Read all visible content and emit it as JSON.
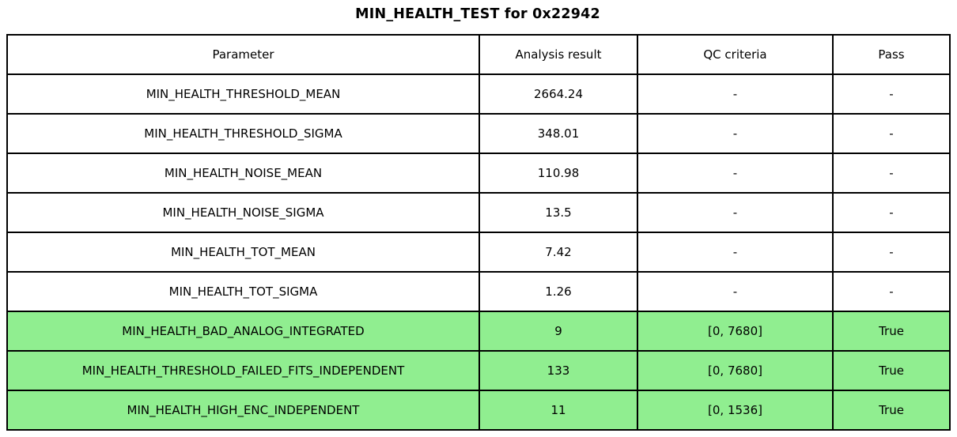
{
  "title": "MIN_HEALTH_TEST for 0x22942",
  "table": {
    "columns": [
      "Parameter",
      "Analysis result",
      "QC criteria",
      "Pass"
    ],
    "rows": [
      {
        "cells": [
          "MIN_HEALTH_THRESHOLD_MEAN",
          "2664.24",
          "-",
          "-"
        ],
        "highlight": false
      },
      {
        "cells": [
          "MIN_HEALTH_THRESHOLD_SIGMA",
          "348.01",
          "-",
          "-"
        ],
        "highlight": false
      },
      {
        "cells": [
          "MIN_HEALTH_NOISE_MEAN",
          "110.98",
          "-",
          "-"
        ],
        "highlight": false
      },
      {
        "cells": [
          "MIN_HEALTH_NOISE_SIGMA",
          "13.5",
          "-",
          "-"
        ],
        "highlight": false
      },
      {
        "cells": [
          "MIN_HEALTH_TOT_MEAN",
          "7.42",
          "-",
          "-"
        ],
        "highlight": false
      },
      {
        "cells": [
          "MIN_HEALTH_TOT_SIGMA",
          "1.26",
          "-",
          "-"
        ],
        "highlight": false
      },
      {
        "cells": [
          "MIN_HEALTH_BAD_ANALOG_INTEGRATED",
          "9",
          "[0, 7680]",
          "True"
        ],
        "highlight": true
      },
      {
        "cells": [
          "MIN_HEALTH_THRESHOLD_FAILED_FITS_INDEPENDENT",
          "133",
          "[0, 7680]",
          "True"
        ],
        "highlight": true
      },
      {
        "cells": [
          "MIN_HEALTH_HIGH_ENC_INDEPENDENT",
          "11",
          "[0, 1536]",
          "True"
        ],
        "highlight": true
      }
    ],
    "colors": {
      "highlight_green": "#90EE90",
      "border": "#000000",
      "background": "#FFFFFF",
      "text": "#000000"
    }
  }
}
